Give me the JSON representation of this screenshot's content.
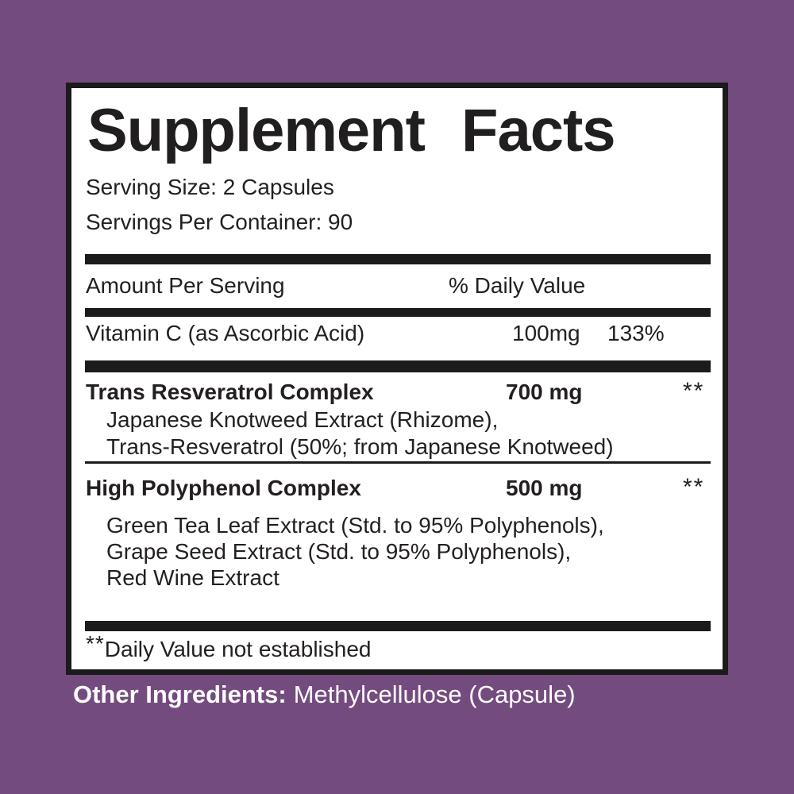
{
  "colors": {
    "background": "#744B7E",
    "label_background": "#FFFFFF",
    "border": "#1B1B1B",
    "bar": "#1B1B1B",
    "text": "#231F20",
    "footer_text": "#FFFFFF"
  },
  "label": {
    "title": "Supplement Facts",
    "serving_size": "Serving Size: 2 Capsules",
    "servings_per_container": "Servings Per Container: 90",
    "header": {
      "amount": "Amount Per Serving",
      "daily_value": "% Daily Value"
    },
    "nutrients": [
      {
        "name": "Vitamin C (as Ascorbic Acid)",
        "amount": "100mg",
        "daily_value": "133%"
      }
    ],
    "complexes": [
      {
        "name": "Trans Resveratrol Complex",
        "amount": "700 mg",
        "daily_value": "**",
        "ingredients": [
          "Japanese Knotweed Extract (Rhizome),",
          "Trans-Resveratrol (50%; from Japanese Knotweed)"
        ]
      },
      {
        "name": "High Polyphenol Complex",
        "amount": "500 mg",
        "daily_value": "**",
        "ingredients": [
          "Green Tea Leaf Extract (Std. to 95% Polyphenols),",
          "Grape Seed Extract (Std. to 95% Polyphenols),",
          "Red Wine Extract"
        ]
      }
    ],
    "footnote": {
      "marker": "**",
      "text": "Daily Value not established"
    }
  },
  "other_ingredients": {
    "label": "Other Ingredients:",
    "value": "Methylcellulose (Capsule)"
  }
}
